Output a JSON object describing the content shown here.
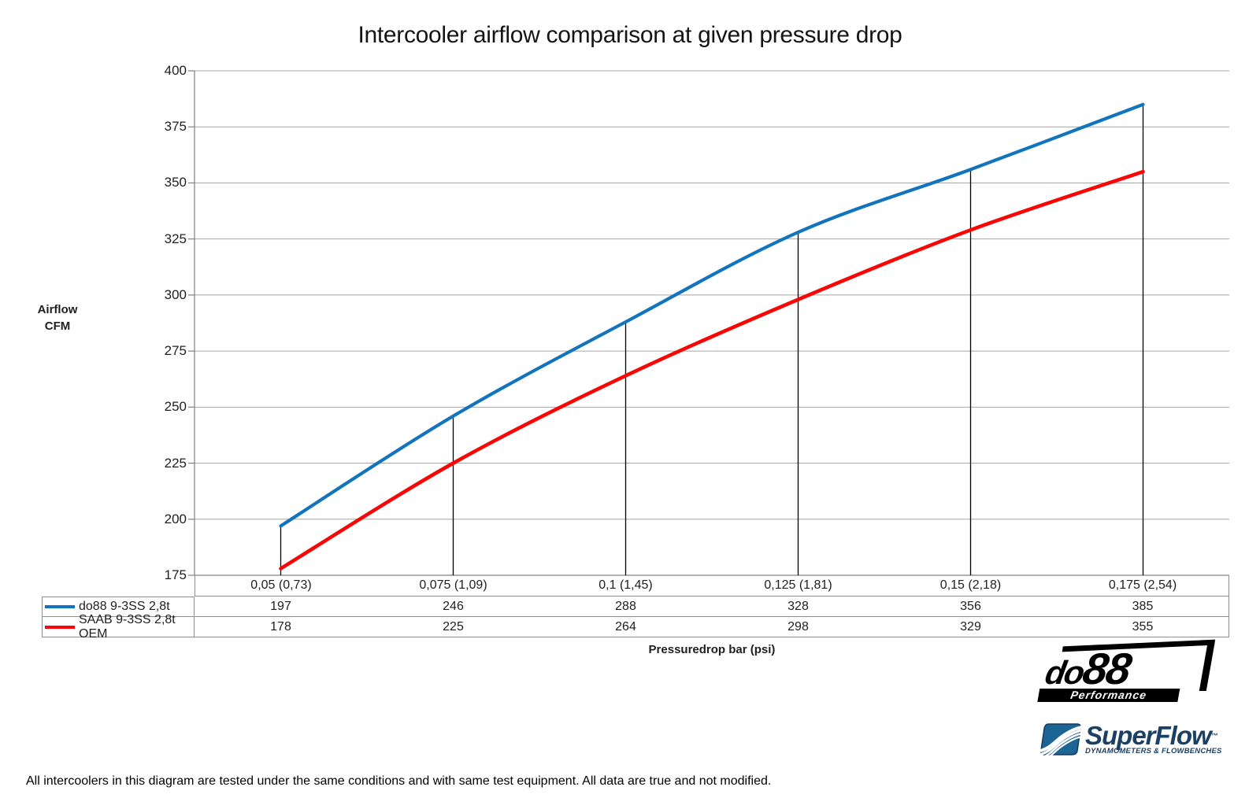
{
  "title": "Intercooler airflow comparison at given pressure drop",
  "chart_data": {
    "type": "line",
    "categories": [
      "0,05 (0,73)",
      "0,075 (1,09)",
      "0,1 (1,45)",
      "0,125 (1,81)",
      "0,15 (2,18)",
      "0,175 (2,54)"
    ],
    "series": [
      {
        "name": "do88 9-3SS 2,8t",
        "values": [
          197,
          246,
          288,
          328,
          356,
          385
        ],
        "color": "#1274BC",
        "width": 4.2
      },
      {
        "name": "SAAB 9-3SS 2,8t OEM",
        "values": [
          178,
          225,
          264,
          298,
          329,
          355
        ],
        "color": "#FA0505",
        "width": 4.6
      }
    ],
    "title": "Intercooler airflow comparison at given pressure drop",
    "xlabel": "Pressuredrop bar (psi)",
    "ylabel_lines": [
      "Airflow",
      "CFM"
    ],
    "ylim": [
      175,
      400
    ],
    "yticks": [
      175,
      200,
      225,
      250,
      275,
      300,
      325,
      350,
      375,
      400
    ],
    "grid": true,
    "smooth_lines": true,
    "drop_lines": true,
    "legend_position": "table-left"
  },
  "colors": {
    "gridline": "#A6A6A6",
    "axis": "#808080",
    "drop_line": "#000000",
    "table_border": "#8F8F8F",
    "superflow_blue": "#1B4064",
    "superflow_icon_blue": "#1C6396",
    "do88_black": "#000000"
  },
  "footer_note": "All intercoolers in this diagram are tested under the same conditions and with same test equipment. All data are true and not modified.",
  "logos": {
    "do88": {
      "text_do": "do",
      "text_88": "88",
      "subtext": "Performance"
    },
    "superflow": {
      "text": "SuperFlow",
      "tm": "™",
      "subtext": "DYNAMOMETERS & FLOWBENCHES"
    }
  }
}
